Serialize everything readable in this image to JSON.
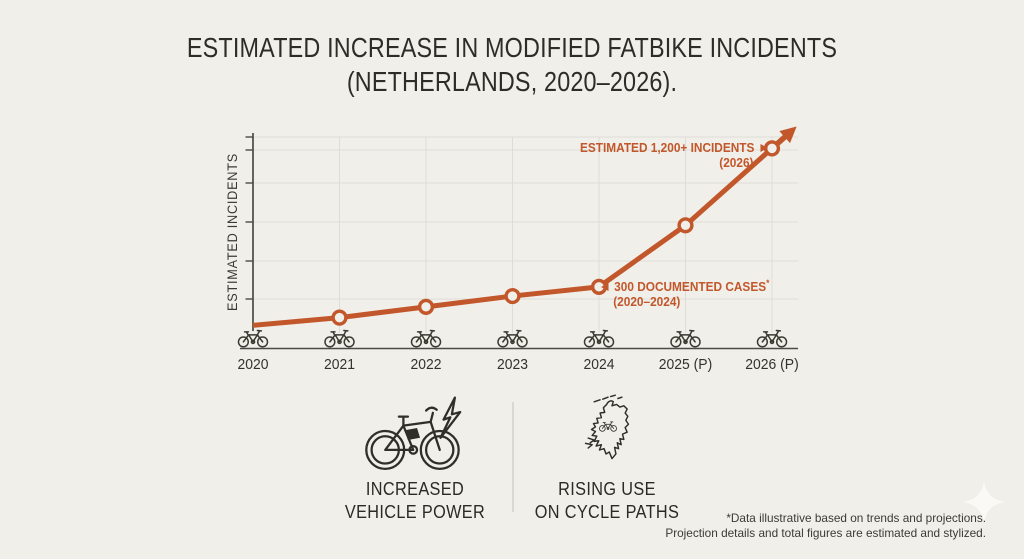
{
  "title": {
    "line1": "ESTIMATED INCREASE IN MODIFIED FATBIKE INCIDENTS",
    "line2": "(NETHERLANDS, 2020–2026)."
  },
  "chart_data": {
    "type": "line",
    "title": "Estimated increase in modified fatbike incidents (Netherlands, 2020–2026)",
    "categories": [
      "2020",
      "2021",
      "2022",
      "2023",
      "2024",
      "2025 (P)",
      "2026 (P)"
    ],
    "values": [
      50,
      100,
      170,
      240,
      300,
      700,
      1200
    ],
    "xlabel": "",
    "ylabel": "ESTIMATED INCIDENTS",
    "ylim": [
      0,
      1300
    ],
    "y_ticks_labeled": false,
    "grid": true,
    "legend": "none",
    "line_color": "#c2572b",
    "marker_style": "open-circle",
    "x_tick_icon": "bicycle-icon",
    "arrow_end": true,
    "annotations": {
      "peak": {
        "line1": "ESTIMATED 1,200+ INCIDENTS",
        "line2": "(2026)",
        "value": 1200,
        "target_year": "2026"
      },
      "cases": {
        "line1": "300 DOCUMENTED CASES",
        "asterisk": "*",
        "line2": "(2020–2024)",
        "value": 300,
        "target_year": "2024"
      }
    }
  },
  "callouts": [
    {
      "icon": "fatbike-lightning-icon",
      "line1": "INCREASED",
      "line2": "VEHICLE POWER"
    },
    {
      "icon": "netherlands-map-bike-icon",
      "line1": "RISING USE",
      "line2": "ON CYCLE PATHS"
    }
  ],
  "footnote": {
    "line1": "*Data illustrative based on trends and projections.",
    "line2": "Projection details and total figures are estimated and stylized."
  },
  "colors": {
    "background": "#f1efe9",
    "accent": "#c2572b",
    "ink": "#33332d",
    "gridline": "#dddcd6",
    "axis": "#4b4b44"
  }
}
